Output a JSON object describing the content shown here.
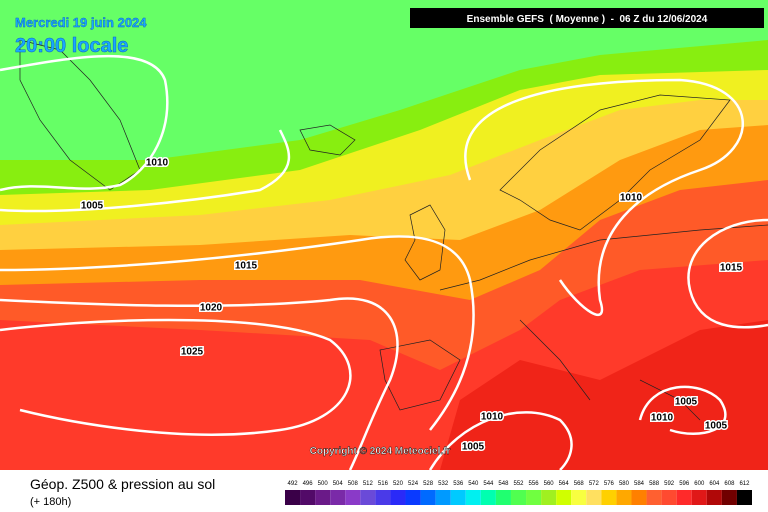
{
  "header": {
    "date": "Mercredi 19 juin 2024",
    "time": "20:00 locale",
    "model": "Ensemble GEFS  ( Moyenne )  -  06 Z du 12/06/2024"
  },
  "copyright": "Copyright © 2024 Meteociel.fr",
  "footer": {
    "title": "Géop. Z500 & pression au sol",
    "lead": "(+ 180h)"
  },
  "isobar_labels": [
    1010,
    1005,
    1015,
    1020,
    1025,
    1010,
    1015,
    1005,
    1010,
    1005,
    1010,
    1005
  ],
  "scale": {
    "labels": [
      492,
      496,
      500,
      504,
      508,
      512,
      516,
      520,
      524,
      528,
      532,
      536,
      540,
      544,
      548,
      552,
      556,
      560,
      564,
      568,
      572,
      576,
      580,
      584,
      588,
      592,
      596,
      600,
      604,
      608,
      612
    ],
    "colors": [
      "#3a0048",
      "#520a68",
      "#6a1a88",
      "#7a2aa8",
      "#8a3ac8",
      "#6a4ad8",
      "#4a3ae8",
      "#2a2af8",
      "#0a3aff",
      "#006aff",
      "#009aff",
      "#00caff",
      "#00f0f0",
      "#00ffb0",
      "#20ff70",
      "#50ff50",
      "#70ff40",
      "#a0f020",
      "#d0ff00",
      "#f8ff40",
      "#ffe060",
      "#ffd000",
      "#ffa800",
      "#ff8000",
      "#ff6030",
      "#ff4a30",
      "#ff2a2a",
      "#e01818",
      "#b00808",
      "#700000",
      "#000000"
    ]
  }
}
